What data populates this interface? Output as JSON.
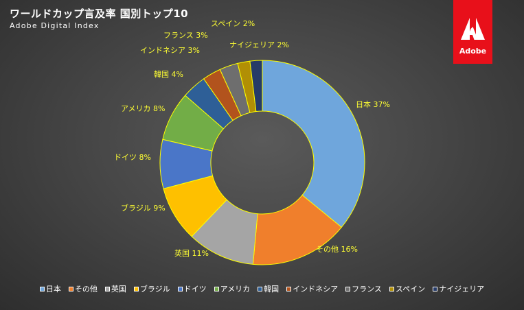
{
  "header": {
    "title": "ワールドカップ言及率 国別トップ10",
    "subtitle": "Adobe Digital Index"
  },
  "logo": {
    "text": "Adobe",
    "color": "#e8101a"
  },
  "chart_data": {
    "type": "pie",
    "subtype": "donut",
    "title": "ワールドカップ言及率 国別トップ10",
    "subtitle": "Adobe Digital Index",
    "categories": [
      "日本",
      "その他",
      "英国",
      "ブラジル",
      "ドイツ",
      "アメリカ",
      "韓国",
      "インドネシア",
      "フランス",
      "スペイン",
      "ナイジェリア"
    ],
    "values": [
      37,
      16,
      11,
      9,
      8,
      8,
      4,
      3,
      3,
      2,
      2
    ],
    "data_labels": [
      "日本 37%",
      "その他 16%",
      "英国 11%",
      "ブラジル 9%",
      "ドイツ 8%",
      "アメリカ 8%",
      "韓国 4%",
      "インドネシア 3%",
      "フランス 3%",
      "スペイン 2%",
      "ナイジェリア 2%"
    ],
    "colors": [
      "#6fa6dc",
      "#f07f2c",
      "#a5a5a5",
      "#fec000",
      "#4a76c8",
      "#72ad47",
      "#2e5f97",
      "#b2531d",
      "#6e6e6e",
      "#b18f05",
      "#263b68"
    ],
    "slice_border_color": "#ffff00",
    "label_color": "#ffff33",
    "legend_position": "bottom"
  }
}
